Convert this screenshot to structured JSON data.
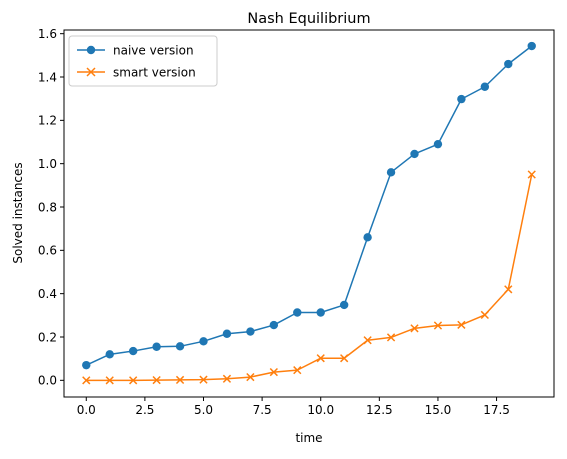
{
  "chart_data": {
    "type": "line",
    "title": "Nash Equilibrium",
    "xlabel": "time",
    "ylabel": "Solved instances",
    "xlim": [
      -0.95,
      19.95
    ],
    "ylim": [
      -0.077,
      1.617
    ],
    "x_ticks": [
      0.0,
      2.5,
      5.0,
      7.5,
      10.0,
      12.5,
      15.0,
      17.5
    ],
    "x_tick_labels": [
      "0.0",
      "2.5",
      "5.0",
      "7.5",
      "10.0",
      "12.5",
      "15.0",
      "17.5"
    ],
    "y_ticks": [
      0.0,
      0.2,
      0.4,
      0.6,
      0.8,
      1.0,
      1.2,
      1.4,
      1.6
    ],
    "y_tick_labels": [
      "0.0",
      "0.2",
      "0.4",
      "0.6",
      "0.8",
      "1.0",
      "1.2",
      "1.4",
      "1.6"
    ],
    "grid": false,
    "legend_position": "upper-left",
    "x": [
      0,
      1,
      2,
      3,
      4,
      5,
      6,
      7,
      8,
      9,
      10,
      11,
      12,
      13,
      14,
      15,
      16,
      17,
      18,
      19
    ],
    "series": [
      {
        "name": "naive version",
        "color": "#1f77b4",
        "marker": "circle",
        "values": [
          0.07,
          0.12,
          0.135,
          0.155,
          0.157,
          0.18,
          0.215,
          0.225,
          0.255,
          0.313,
          0.313,
          0.348,
          0.66,
          0.96,
          1.045,
          1.09,
          1.298,
          1.355,
          1.46,
          1.543
        ]
      },
      {
        "name": "smart version",
        "color": "#ff7f0e",
        "marker": "x",
        "values": [
          0.0,
          0.0,
          0.0,
          0.001,
          0.002,
          0.003,
          0.007,
          0.015,
          0.038,
          0.047,
          0.102,
          0.102,
          0.185,
          0.198,
          0.24,
          0.253,
          0.256,
          0.302,
          0.42,
          0.95
        ]
      }
    ]
  }
}
